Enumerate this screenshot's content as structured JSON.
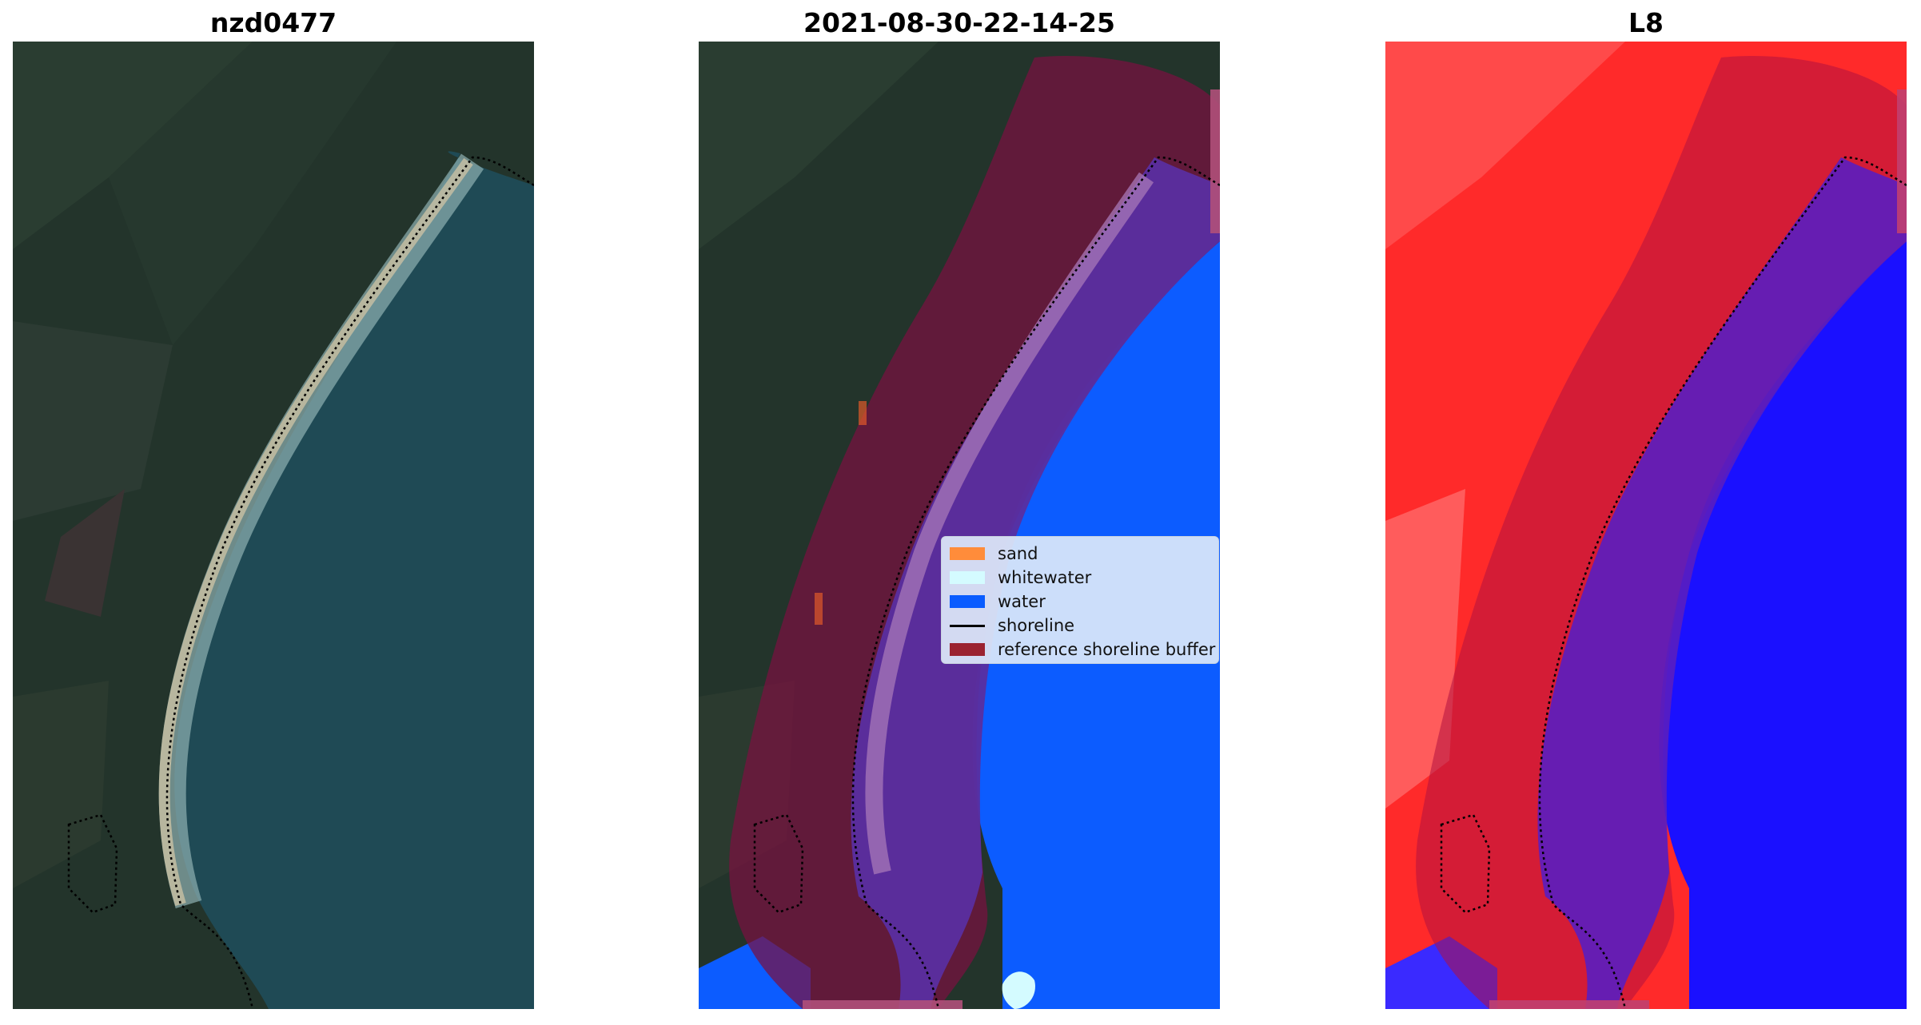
{
  "panels": [
    {
      "title": "nzd0477"
    },
    {
      "title": "2021-08-30-22-14-25"
    },
    {
      "title": "L8"
    }
  ],
  "legend": {
    "items": [
      {
        "label": "sand",
        "color": "#ff8c3a"
      },
      {
        "label": "whitewater",
        "color": "#d4fbff"
      },
      {
        "label": "water",
        "color": "#0a5cff"
      },
      {
        "label": "shoreline",
        "color": "#000000"
      },
      {
        "label": "reference shoreline buffer",
        "color": "#9b2230"
      }
    ]
  },
  "colors": {
    "land": "#23342b",
    "sea": "#1f4a55",
    "water_class": "#0c5cff",
    "buffer_overlay": "#7a1040",
    "classified_overlay": "#5a2ea0",
    "index_land": "#ff2a2a",
    "index_water": "#1a10ff"
  }
}
